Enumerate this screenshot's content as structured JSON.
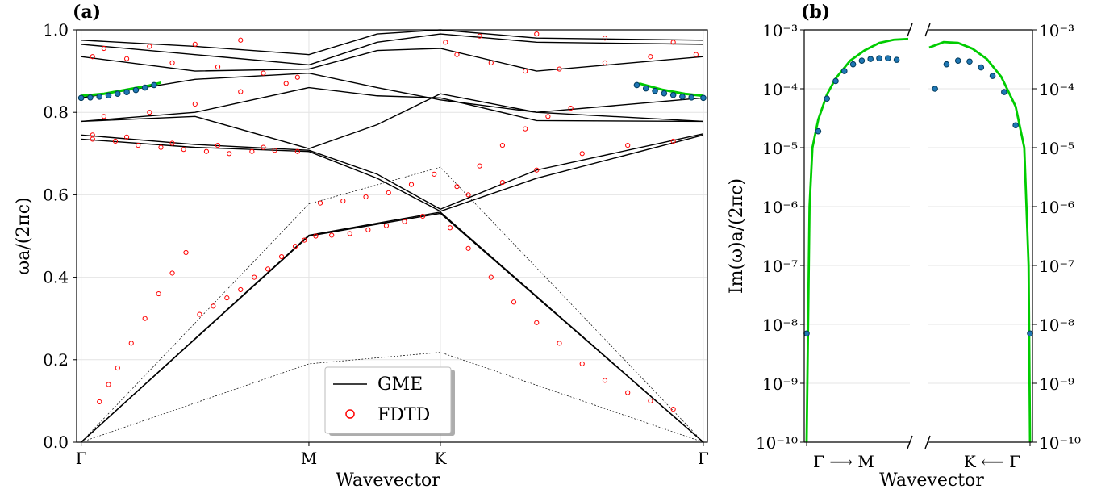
{
  "chart_data": [
    {
      "panel_label": "(a)",
      "type": "scatter",
      "xlabel": "Wavevector",
      "ylabel": "ωa/(2πc)",
      "xticks": [
        "Γ",
        "M",
        "K",
        "Γ"
      ],
      "xtick_positions": [
        0,
        1,
        1.5774,
        2.7321
      ],
      "xlim": [
        -0.02,
        2.75
      ],
      "ylim": [
        0,
        1
      ],
      "yticks": [
        "0.0",
        "0.2",
        "0.4",
        "0.6",
        "0.8",
        "1.0"
      ],
      "grid": true,
      "legend_position": "bottom-center",
      "legend": [
        {
          "label": "GME",
          "style": "line",
          "color": "#000000"
        },
        {
          "label": "FDTD",
          "style": "open-circle",
          "color": "#ff0000"
        }
      ],
      "light_lines": [
        {
          "x": [
            0,
            1,
            1.5774,
            2.7321
          ],
          "y": [
            0,
            0.19,
            0.218,
            0
          ]
        },
        {
          "x": [
            0,
            1,
            1.5774,
            2.7321
          ],
          "y": [
            0,
            0.578,
            0.667,
            0
          ]
        }
      ],
      "gme_bands": [
        {
          "x": [
            0,
            1,
            1.5774,
            2.7321
          ],
          "y": [
            0.0,
            0.5,
            0.555,
            0.0
          ]
        },
        {
          "x": [
            0,
            1,
            1.5774,
            2.7321
          ],
          "y": [
            0.0,
            0.502,
            0.558,
            0.0
          ]
        },
        {
          "x": [
            0,
            0.5,
            1,
            1.3,
            1.5774,
            2.0,
            2.7321
          ],
          "y": [
            0.735,
            0.715,
            0.705,
            0.64,
            0.56,
            0.64,
            0.745
          ]
        },
        {
          "x": [
            0,
            0.5,
            1,
            1.3,
            1.5774,
            2.0,
            2.7321
          ],
          "y": [
            0.745,
            0.722,
            0.708,
            0.65,
            0.565,
            0.66,
            0.748
          ]
        },
        {
          "x": [
            0,
            0.5,
            1,
            1.3,
            1.5774,
            2.0,
            2.7321
          ],
          "y": [
            0.778,
            0.79,
            0.712,
            0.77,
            0.845,
            0.8,
            0.778
          ]
        },
        {
          "x": [
            0,
            0.5,
            1,
            1.3,
            1.5774,
            2.0,
            2.7321
          ],
          "y": [
            0.778,
            0.8,
            0.86,
            0.84,
            0.835,
            0.78,
            0.778
          ]
        },
        {
          "x": [
            0,
            0.5,
            1,
            1.3,
            1.5774,
            2.0,
            2.7321
          ],
          "y": [
            0.835,
            0.88,
            0.895,
            0.86,
            0.83,
            0.8,
            0.835
          ]
        },
        {
          "x": [
            0,
            0.5,
            1,
            1.3,
            1.5774,
            2.0,
            2.7321
          ],
          "y": [
            0.935,
            0.9,
            0.905,
            0.95,
            0.955,
            0.9,
            0.935
          ]
        },
        {
          "x": [
            0,
            0.5,
            1,
            1.3,
            1.5774,
            2.0,
            2.7321
          ],
          "y": [
            0.965,
            0.94,
            0.915,
            0.97,
            0.99,
            0.97,
            0.965
          ]
        },
        {
          "x": [
            0,
            0.5,
            1,
            1.3,
            1.5774,
            2.0,
            2.7321
          ],
          "y": [
            0.975,
            0.96,
            0.94,
            0.99,
            1.0,
            0.98,
            0.975
          ]
        }
      ],
      "fdtd_points": [
        [
          0.08,
          0.098
        ],
        [
          0.12,
          0.14
        ],
        [
          0.16,
          0.18
        ],
        [
          0.22,
          0.24
        ],
        [
          0.28,
          0.3
        ],
        [
          0.34,
          0.36
        ],
        [
          0.4,
          0.41
        ],
        [
          0.46,
          0.46
        ],
        [
          0.52,
          0.31
        ],
        [
          0.58,
          0.33
        ],
        [
          0.64,
          0.35
        ],
        [
          0.7,
          0.37
        ],
        [
          0.76,
          0.4
        ],
        [
          0.82,
          0.42
        ],
        [
          0.88,
          0.45
        ],
        [
          0.94,
          0.475
        ],
        [
          0.98,
          0.49
        ],
        [
          1.03,
          0.5
        ],
        [
          1.1,
          0.502
        ],
        [
          1.18,
          0.506
        ],
        [
          1.26,
          0.515
        ],
        [
          1.34,
          0.525
        ],
        [
          1.42,
          0.535
        ],
        [
          1.5,
          0.548
        ],
        [
          1.05,
          0.58
        ],
        [
          1.15,
          0.585
        ],
        [
          1.25,
          0.595
        ],
        [
          1.35,
          0.605
        ],
        [
          1.45,
          0.625
        ],
        [
          1.55,
          0.65
        ],
        [
          1.62,
          0.52
        ],
        [
          1.7,
          0.47
        ],
        [
          1.8,
          0.4
        ],
        [
          1.9,
          0.34
        ],
        [
          2.0,
          0.29
        ],
        [
          2.1,
          0.24
        ],
        [
          2.2,
          0.19
        ],
        [
          2.3,
          0.15
        ],
        [
          2.4,
          0.12
        ],
        [
          2.5,
          0.1
        ],
        [
          2.6,
          0.08
        ],
        [
          0.05,
          0.735
        ],
        [
          0.15,
          0.73
        ],
        [
          0.25,
          0.72
        ],
        [
          0.35,
          0.715
        ],
        [
          0.45,
          0.71
        ],
        [
          0.55,
          0.705
        ],
        [
          0.65,
          0.7
        ],
        [
          0.75,
          0.705
        ],
        [
          0.85,
          0.708
        ],
        [
          0.95,
          0.705
        ],
        [
          0.05,
          0.745
        ],
        [
          0.2,
          0.74
        ],
        [
          0.4,
          0.725
        ],
        [
          0.6,
          0.72
        ],
        [
          0.8,
          0.715
        ],
        [
          0.1,
          0.79
        ],
        [
          0.3,
          0.8
        ],
        [
          0.5,
          0.82
        ],
        [
          0.7,
          0.85
        ],
        [
          0.9,
          0.87
        ],
        [
          0.05,
          0.935
        ],
        [
          0.2,
          0.93
        ],
        [
          0.4,
          0.92
        ],
        [
          0.6,
          0.91
        ],
        [
          0.8,
          0.895
        ],
        [
          0.95,
          0.885
        ],
        [
          0.1,
          0.955
        ],
        [
          0.3,
          0.96
        ],
        [
          0.5,
          0.965
        ],
        [
          0.7,
          0.975
        ],
        [
          1.65,
          0.62
        ],
        [
          1.75,
          0.67
        ],
        [
          1.85,
          0.72
        ],
        [
          1.95,
          0.76
        ],
        [
          2.05,
          0.79
        ],
        [
          2.15,
          0.81
        ],
        [
          1.7,
          0.6
        ],
        [
          1.85,
          0.63
        ],
        [
          2.0,
          0.66
        ],
        [
          2.2,
          0.7
        ],
        [
          2.4,
          0.72
        ],
        [
          2.6,
          0.73
        ],
        [
          1.65,
          0.94
        ],
        [
          1.8,
          0.92
        ],
        [
          1.95,
          0.9
        ],
        [
          2.1,
          0.905
        ],
        [
          2.3,
          0.92
        ],
        [
          2.5,
          0.935
        ],
        [
          2.7,
          0.94
        ],
        [
          1.6,
          0.97
        ],
        [
          1.75,
          0.985
        ],
        [
          2.0,
          0.99
        ],
        [
          2.3,
          0.98
        ],
        [
          2.6,
          0.97
        ]
      ],
      "mode_gme": {
        "color": "#00cc00",
        "x": [
          0,
          0.1,
          0.2,
          0.3,
          0.35
        ],
        "y": [
          0.84,
          0.845,
          0.855,
          0.865,
          0.872
        ],
        "x2": [
          2.45,
          2.55,
          2.65,
          2.7321
        ],
        "y2": [
          0.87,
          0.855,
          0.845,
          0.84
        ]
      },
      "mode_fdtd": {
        "color": "#1f77b4",
        "x": [
          0,
          0.04,
          0.08,
          0.12,
          0.16,
          0.2,
          0.24,
          0.28,
          0.32
        ],
        "y": [
          0.835,
          0.836,
          0.838,
          0.841,
          0.845,
          0.849,
          0.854,
          0.86,
          0.866
        ],
        "x2": [
          2.44,
          2.48,
          2.52,
          2.56,
          2.6,
          2.64,
          2.68,
          2.7321
        ],
        "y2": [
          0.866,
          0.858,
          0.852,
          0.846,
          0.842,
          0.838,
          0.836,
          0.835
        ]
      }
    },
    {
      "panel_label": "(b)",
      "type": "scatter",
      "xlabel": "Wavevector",
      "ylabel": "Im(ω)a/(2πc)",
      "yscale": "log",
      "ylim": [
        1e-10,
        0.001
      ],
      "yticks": [
        "10⁻¹⁰",
        "10⁻⁹",
        "10⁻⁸",
        "10⁻⁷",
        "10⁻⁶",
        "10⁻⁵",
        "10⁻⁴",
        "10⁻³"
      ],
      "xticks_left": "Γ ⟶ M",
      "xticks_right": "K ⟵ Γ",
      "broken_x_axis": true,
      "grid": true,
      "gme_color": "#00cc00",
      "fdtd_color": "#1f77b4",
      "left_segment": {
        "gme_x": [
          0,
          0.005,
          0.01,
          0.02,
          0.04,
          0.07,
          0.1,
          0.15,
          0.2,
          0.25,
          0.3,
          0.35
        ],
        "gme_y": [
          1e-10,
          1e-08,
          1e-06,
          1e-05,
          3e-05,
          8e-05,
          0.00015,
          0.0003,
          0.00045,
          0.0006,
          0.00068,
          0.0007
        ],
        "fdtd_x": [
          0,
          0.04,
          0.07,
          0.1,
          0.13,
          0.16,
          0.19,
          0.22,
          0.25,
          0.28,
          0.31
        ],
        "fdtd_y": [
          7e-09,
          1.9e-05,
          6.8e-05,
          0.000135,
          0.0002,
          0.00026,
          0.0003,
          0.00032,
          0.00033,
          0.00033,
          0.00031
        ]
      },
      "right_segment": {
        "gme_x": [
          0,
          0.05,
          0.1,
          0.15,
          0.2,
          0.25,
          0.3,
          0.33,
          0.345,
          0.35
        ],
        "gme_y": [
          0.0005,
          0.00062,
          0.0006,
          0.00048,
          0.00032,
          0.00016,
          5e-05,
          1e-05,
          1e-07,
          1e-10
        ],
        "fdtd_x": [
          0.02,
          0.06,
          0.1,
          0.14,
          0.18,
          0.22,
          0.26,
          0.3,
          0.35
        ],
        "fdtd_y": [
          0.0001,
          0.00026,
          0.0003,
          0.00029,
          0.00023,
          0.000165,
          8.8e-05,
          2.4e-05,
          7e-09
        ]
      }
    }
  ]
}
